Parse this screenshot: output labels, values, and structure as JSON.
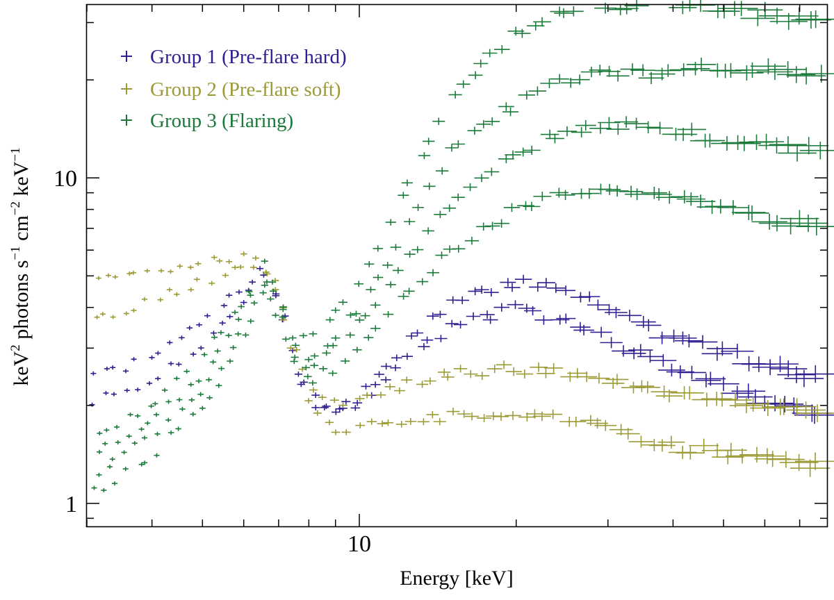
{
  "chart_data": {
    "type": "scatter",
    "title": "",
    "xlabel": "Energy [keV]",
    "ylabel_parts": [
      "keV",
      "2",
      " photons s",
      "−1",
      " cm",
      "−2",
      " keV",
      "−1"
    ],
    "xscale": "log",
    "yscale": "log",
    "xlim": [
      3,
      79
    ],
    "ylim": [
      0.85,
      34
    ],
    "x_tick_labels": [
      {
        "value": 10,
        "label": "10"
      }
    ],
    "y_tick_labels": [
      {
        "value": 1,
        "label": "1"
      },
      {
        "value": 10,
        "label": "10"
      }
    ],
    "legend_position": "top-left",
    "series": [
      {
        "name": "Group 1 (Pre-flare hard)",
        "color": "#2e1e8f",
        "marker": "+",
        "curves": [
          {
            "x": [
              3,
              4,
              5,
              6,
              6.5,
              7,
              7.5,
              8,
              9,
              10,
              12,
              15,
              20,
              25,
              30,
              40,
              79
            ],
            "y": [
              2.4,
              2.8,
              3.6,
              4.6,
              5.3,
              4.4,
              2.8,
              2.2,
              1.9,
              2.1,
              3.0,
              4.1,
              4.8,
              4.6,
              4.0,
              3.2,
              2.4
            ]
          },
          {
            "x": [
              3,
              4,
              5,
              6,
              6.5,
              7,
              7.5,
              8,
              9,
              10,
              12,
              15,
              20,
              25,
              30,
              40,
              79
            ],
            "y": [
              2.0,
              2.4,
              3.1,
              4.2,
              5.1,
              4.2,
              2.6,
              2.1,
              1.85,
              2.0,
              2.7,
              3.5,
              4.0,
              3.6,
              3.2,
              2.6,
              1.8
            ]
          }
        ]
      },
      {
        "name": "Group 2 (Pre-flare soft)",
        "color": "#9c9a35",
        "marker": "+",
        "curves": [
          {
            "x": [
              3,
              4,
              5,
              6,
              6.5,
              7,
              7.5,
              8,
              9,
              10,
              12,
              15,
              20,
              25,
              30,
              40,
              79
            ],
            "y": [
              5.0,
              5.2,
              5.5,
              5.7,
              5.5,
              4.6,
              3.0,
              2.3,
              2.0,
              2.1,
              2.3,
              2.5,
              2.6,
              2.5,
              2.4,
              2.2,
              1.9
            ]
          },
          {
            "x": [
              3,
              4,
              5,
              6,
              6.5,
              7,
              7.5,
              8,
              9,
              10,
              12,
              15,
              20,
              25,
              30,
              40,
              79
            ],
            "y": [
              3.6,
              4.2,
              4.8,
              5.3,
              5.2,
              4.3,
              2.8,
              2.0,
              1.7,
              1.7,
              1.8,
              1.85,
              1.9,
              1.8,
              1.7,
              1.5,
              1.3
            ]
          }
        ]
      },
      {
        "name": "Group 3 (Flaring)",
        "color": "#1b7a3a",
        "marker": "+",
        "curves": [
          {
            "x": [
              3,
              4,
              5,
              6,
              6.5,
              7,
              7.5,
              8,
              9,
              10,
              12,
              15,
              20,
              25,
              30,
              40,
              50,
              79
            ],
            "y": [
              1.6,
              2.0,
              2.8,
              4.2,
              5.6,
              4.6,
              3.2,
              3.2,
              3.8,
              4.8,
              8.5,
              18,
              28,
              33,
              34,
              34,
              33,
              30
            ]
          },
          {
            "x": [
              3,
              4,
              5,
              6,
              6.5,
              7,
              7.5,
              8,
              9,
              10,
              12,
              15,
              20,
              25,
              30,
              40,
              50,
              79
            ],
            "y": [
              1.4,
              1.8,
              2.5,
              3.8,
              5.2,
              4.3,
              3.1,
              2.8,
              3.2,
              4.0,
              6.5,
              12,
              17,
              20,
              21,
              21,
              22,
              21
            ]
          },
          {
            "x": [
              3,
              4,
              5,
              6,
              6.5,
              7,
              7.5,
              8,
              9,
              10,
              12,
              15,
              20,
              25,
              30,
              40,
              50,
              79
            ],
            "y": [
              1.2,
              1.6,
              2.2,
              3.4,
              4.8,
              4.0,
              2.9,
              2.6,
              3.0,
              3.6,
              5.2,
              8.5,
              12,
              14,
              14.5,
              14,
              13,
              12
            ]
          },
          {
            "x": [
              3,
              4,
              5,
              6,
              6.5,
              7,
              7.5,
              8,
              9,
              10,
              12,
              15,
              20,
              25,
              30,
              40,
              50,
              79
            ],
            "y": [
              1.05,
              1.4,
              2.0,
              3.1,
              4.4,
              3.7,
              2.7,
              2.4,
              2.6,
              3.0,
              4.2,
              6.0,
              8.0,
              9.0,
              9.3,
              9.0,
              8.0,
              7.0
            ]
          }
        ]
      }
    ]
  }
}
